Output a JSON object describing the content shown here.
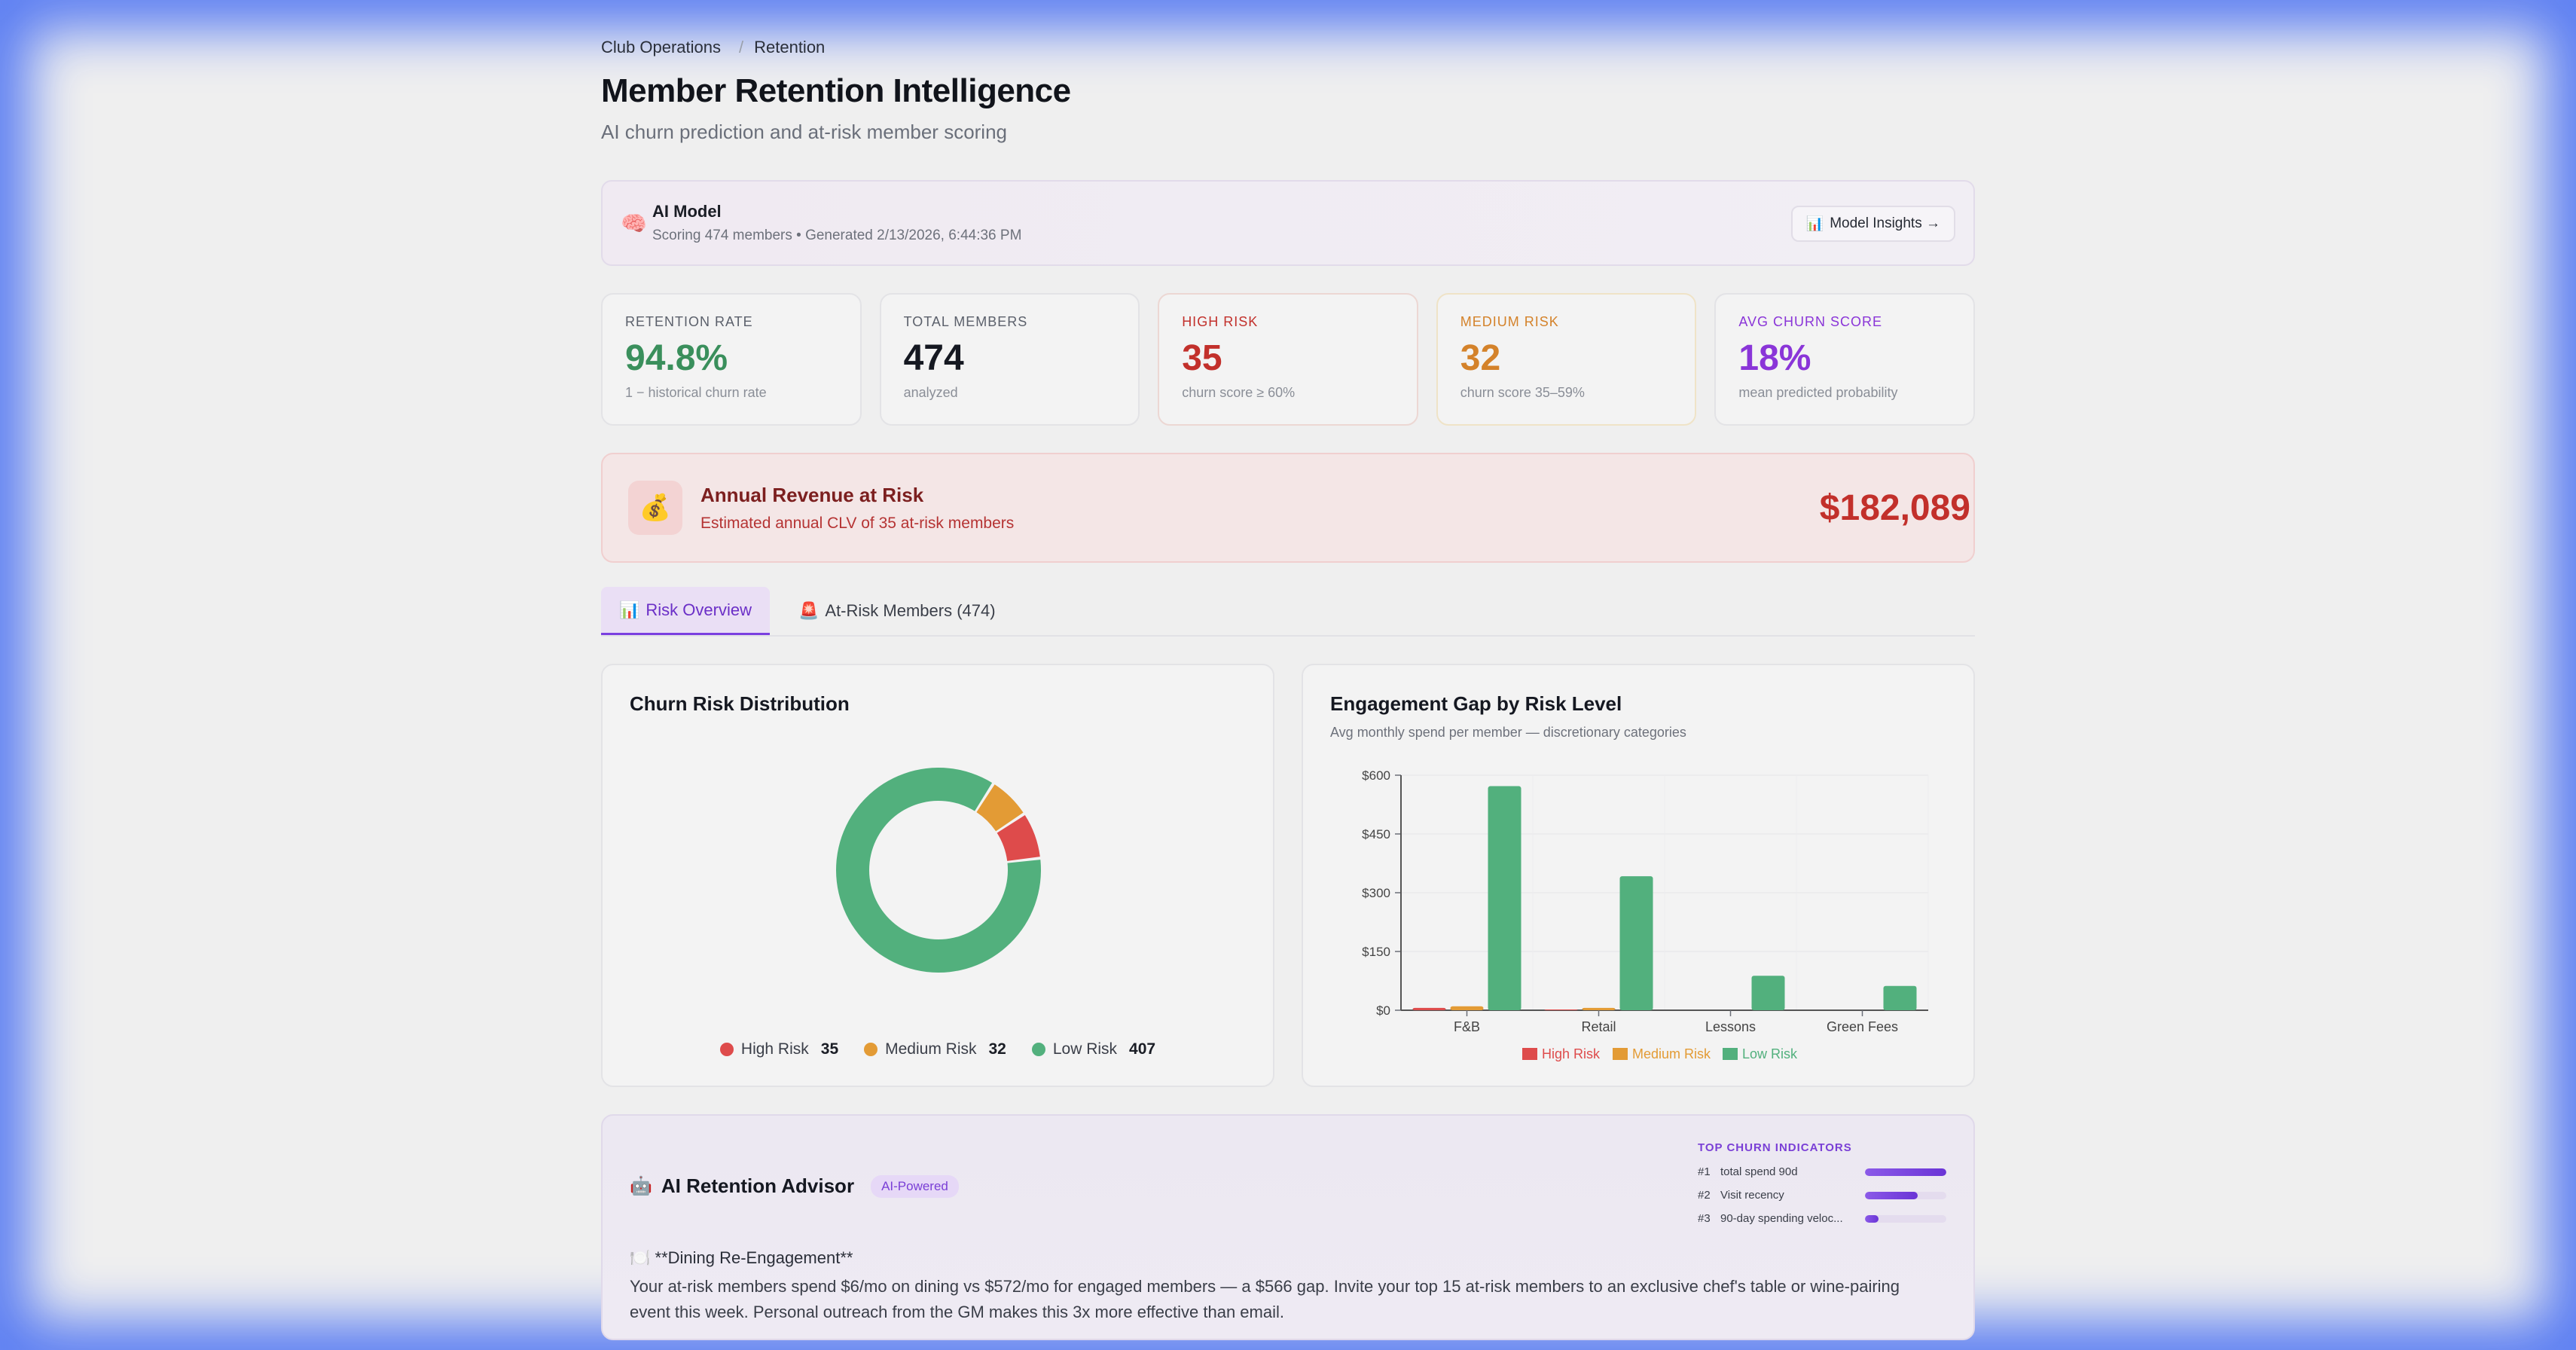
{
  "breadcrumb": {
    "parent": "Club Operations",
    "separator": "/",
    "current": "Retention"
  },
  "header": {
    "title": "Member Retention Intelligence",
    "subtitle": "AI churn prediction and at-risk member scoring"
  },
  "model": {
    "name": "AI Model",
    "meta": "Scoring 474 members • Generated 2/13/2026, 6:44:36 PM",
    "button_label": "Model Insights →"
  },
  "kpis": [
    {
      "label": "RETENTION RATE",
      "value": "94.8%",
      "sub": "1 − historical churn rate",
      "color": "#3a8f5c"
    },
    {
      "label": "TOTAL MEMBERS",
      "value": "474",
      "sub": "analyzed",
      "color": "#151821"
    },
    {
      "label": "HIGH RISK",
      "value": "35",
      "sub": "churn score ≥ 60%",
      "color": "#c2302b"
    },
    {
      "label": "MEDIUM RISK",
      "value": "32",
      "sub": "churn score 35–59%",
      "color": "#d4822a"
    },
    {
      "label": "AVG CHURN SCORE",
      "value": "18%",
      "sub": "mean predicted probability",
      "color": "#8a35d8"
    }
  ],
  "revenue": {
    "title": "Annual Revenue at Risk",
    "sub": "Estimated annual CLV of 35 at-risk members",
    "amount": "$182,089"
  },
  "tabs": [
    {
      "label": "Risk Overview",
      "icon": "bar-chart-icon",
      "active": true
    },
    {
      "label": "At-Risk Members (474)",
      "icon": "siren-icon",
      "active": false
    }
  ],
  "colors": {
    "high": "#de4b4b",
    "medium": "#e39b35",
    "low": "#52b07d"
  },
  "donut": {
    "title": "Churn Risk Distribution",
    "legend": [
      {
        "label": "High Risk",
        "count": "35"
      },
      {
        "label": "Medium Risk",
        "count": "32"
      },
      {
        "label": "Low Risk",
        "count": "407"
      }
    ]
  },
  "chart_data": [
    {
      "type": "pie",
      "title": "Churn Risk Distribution",
      "categories": [
        "High Risk",
        "Medium Risk",
        "Low Risk"
      ],
      "values": [
        35,
        32,
        407
      ]
    },
    {
      "type": "bar",
      "title": "Engagement Gap by Risk Level",
      "subtitle": "Avg monthly spend per member — discretionary categories",
      "categories": [
        "F&B",
        "Retail",
        "Lessons",
        "Green Fees"
      ],
      "series": [
        {
          "name": "High Risk",
          "values": [
            6,
            2,
            0,
            0
          ]
        },
        {
          "name": "Medium Risk",
          "values": [
            10,
            6,
            0,
            0
          ]
        },
        {
          "name": "Low Risk",
          "values": [
            572,
            342,
            88,
            62
          ]
        }
      ],
      "yticks": [
        "$0",
        "$150",
        "$300",
        "$450",
        "$600"
      ],
      "ylim": [
        0,
        600
      ],
      "grid": true,
      "legend": "bottom"
    }
  ],
  "advisor": {
    "title": "AI Retention Advisor",
    "badge": "AI-Powered",
    "heading": "🍽️ **Dining Re-Engagement**",
    "body": "Your at-risk members spend $6/mo on dining vs $572/mo for engaged members — a $566 gap. Invite your top 15 at-risk members to an exclusive chef's table or wine-pairing event this week. Personal outreach from the GM makes this 3x more effective than email.",
    "indicators_title": "TOP CHURN INDICATORS",
    "indicators": [
      {
        "rank": "#1",
        "label": "total spend 90d",
        "share": 1.0
      },
      {
        "rank": "#2",
        "label": "Visit recency",
        "share": 0.65
      },
      {
        "rank": "#3",
        "label": "90-day spending veloc...",
        "share": 0.17
      }
    ]
  }
}
